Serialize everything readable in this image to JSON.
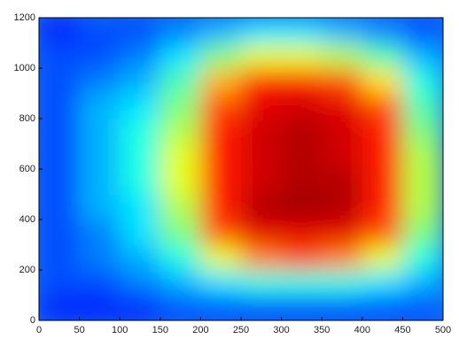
{
  "chart_data": {
    "type": "heatmap",
    "colormap": "jet",
    "zlim": [
      0,
      1
    ],
    "x": [
      25,
      75,
      125,
      175,
      225,
      275,
      325,
      375,
      425,
      475
    ],
    "y": [
      50,
      150,
      250,
      350,
      450,
      550,
      650,
      750,
      850,
      950,
      1050,
      1150
    ],
    "z": [
      [
        0.15,
        0.15,
        0.15,
        0.2,
        0.2,
        0.2,
        0.2,
        0.2,
        0.2,
        0.2
      ],
      [
        0.2,
        0.2,
        0.25,
        0.3,
        0.35,
        0.4,
        0.4,
        0.4,
        0.35,
        0.3
      ],
      [
        0.2,
        0.25,
        0.3,
        0.4,
        0.6,
        0.75,
        0.8,
        0.75,
        0.6,
        0.4
      ],
      [
        0.2,
        0.25,
        0.35,
        0.5,
        0.8,
        0.9,
        0.9,
        0.9,
        0.8,
        0.5
      ],
      [
        0.2,
        0.3,
        0.35,
        0.55,
        0.85,
        0.95,
        0.97,
        0.95,
        0.85,
        0.55
      ],
      [
        0.2,
        0.3,
        0.4,
        0.6,
        0.85,
        0.92,
        0.95,
        0.95,
        0.85,
        0.55
      ],
      [
        0.2,
        0.3,
        0.4,
        0.6,
        0.85,
        0.92,
        0.95,
        0.92,
        0.85,
        0.55
      ],
      [
        0.2,
        0.3,
        0.4,
        0.55,
        0.85,
        0.92,
        0.95,
        0.92,
        0.85,
        0.5
      ],
      [
        0.2,
        0.3,
        0.35,
        0.5,
        0.8,
        0.9,
        0.92,
        0.9,
        0.8,
        0.45
      ],
      [
        0.2,
        0.25,
        0.3,
        0.45,
        0.7,
        0.85,
        0.85,
        0.8,
        0.65,
        0.4
      ],
      [
        0.2,
        0.2,
        0.25,
        0.35,
        0.5,
        0.6,
        0.6,
        0.55,
        0.45,
        0.3
      ],
      [
        0.15,
        0.2,
        0.2,
        0.25,
        0.3,
        0.35,
        0.35,
        0.3,
        0.25,
        0.2
      ]
    ],
    "xlim": [
      0,
      500
    ],
    "xticks": [
      0,
      50,
      100,
      150,
      200,
      250,
      300,
      350,
      400,
      450,
      500
    ],
    "ylim": [
      0,
      1200
    ],
    "yticks": [
      0,
      200,
      400,
      600,
      800,
      1000,
      1200
    ]
  }
}
